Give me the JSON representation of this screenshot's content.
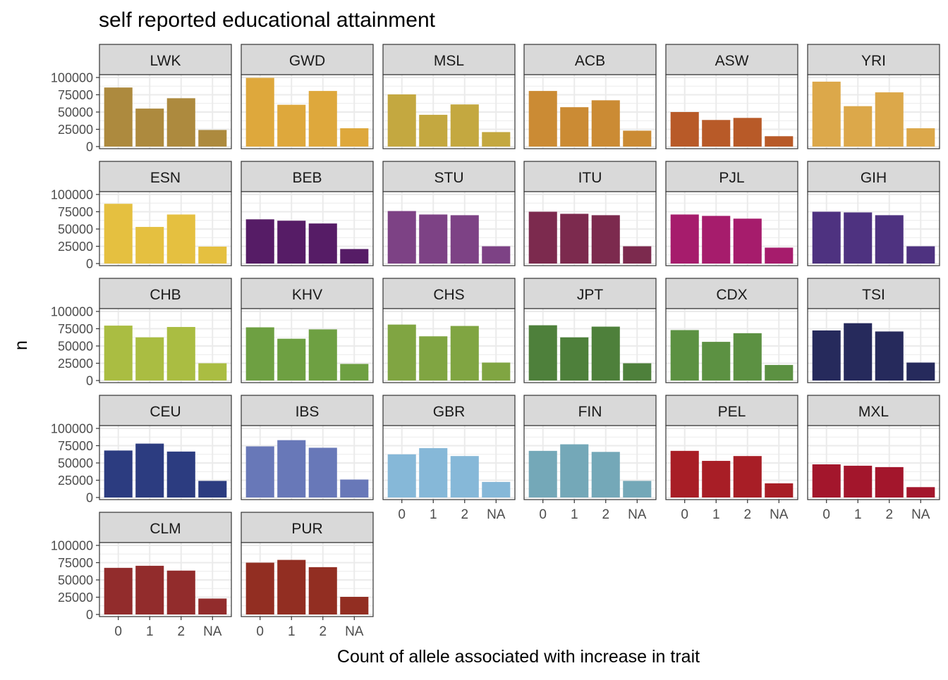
{
  "chart_data": {
    "type": "bar",
    "title": "self reported educational attainment",
    "xlabel": "Count of allele associated with increase in trait",
    "ylabel": "n",
    "categories": [
      "0",
      "1",
      "2",
      "NA"
    ],
    "y_ticks": [
      "0",
      "25000",
      "50000",
      "75000",
      "100000"
    ],
    "y_tick_values": [
      0,
      25000,
      50000,
      75000,
      100000
    ],
    "ylim": [
      0,
      101000
    ],
    "grid": true,
    "facet_layout": {
      "columns": 6,
      "rows": 5
    },
    "panels": [
      {
        "label": "LWK",
        "color": "#AD8A3E",
        "values": [
          85500,
          55000,
          70000,
          24000
        ]
      },
      {
        "label": "GWD",
        "color": "#DEA83C",
        "values": [
          99500,
          60500,
          80500,
          26500
        ]
      },
      {
        "label": "MSL",
        "color": "#C4A840",
        "values": [
          75500,
          46000,
          61000,
          21000
        ]
      },
      {
        "label": "ACB",
        "color": "#CB8B34",
        "values": [
          80500,
          57000,
          67000,
          23000
        ]
      },
      {
        "label": "ASW",
        "color": "#B85A28",
        "values": [
          50000,
          38500,
          41500,
          15000
        ]
      },
      {
        "label": "YRI",
        "color": "#DCA84A",
        "values": [
          94000,
          58500,
          78500,
          26500
        ]
      },
      {
        "label": "ESN",
        "color": "#E5C040",
        "values": [
          86500,
          53000,
          71000,
          24500
        ]
      },
      {
        "label": "BEB",
        "color": "#561C66",
        "values": [
          64000,
          62000,
          58000,
          21000
        ]
      },
      {
        "label": "STU",
        "color": "#7D4285",
        "values": [
          76000,
          71000,
          70000,
          25000
        ]
      },
      {
        "label": "ITU",
        "color": "#7C2A4E",
        "values": [
          75000,
          72000,
          70000,
          25000
        ]
      },
      {
        "label": "PJL",
        "color": "#A61C6C",
        "values": [
          71000,
          69000,
          65000,
          23000
        ]
      },
      {
        "label": "GIH",
        "color": "#4E3280",
        "values": [
          75000,
          74000,
          70000,
          25000
        ]
      },
      {
        "label": "CHB",
        "color": "#AABD42",
        "values": [
          79500,
          62500,
          77500,
          25000
        ]
      },
      {
        "label": "KHV",
        "color": "#6EA042",
        "values": [
          77000,
          60500,
          74000,
          24000
        ]
      },
      {
        "label": "CHS",
        "color": "#80A542",
        "values": [
          81000,
          64000,
          79000,
          26000
        ]
      },
      {
        "label": "JPT",
        "color": "#4E803B",
        "values": [
          80000,
          62500,
          78000,
          25000
        ]
      },
      {
        "label": "CDX",
        "color": "#5C9142",
        "values": [
          73000,
          56000,
          68500,
          22500
        ]
      },
      {
        "label": "TSI",
        "color": "#262A5C",
        "values": [
          72500,
          83000,
          71000,
          26000
        ]
      },
      {
        "label": "CEU",
        "color": "#2C3C80",
        "values": [
          68000,
          78000,
          66500,
          24000
        ]
      },
      {
        "label": "IBS",
        "color": "#6878B8",
        "values": [
          74000,
          83000,
          72000,
          26000
        ]
      },
      {
        "label": "GBR",
        "color": "#86B8D8",
        "values": [
          62500,
          71500,
          60000,
          22500
        ]
      },
      {
        "label": "FIN",
        "color": "#74A8B8",
        "values": [
          67500,
          77000,
          66000,
          24000
        ]
      },
      {
        "label": "PEL",
        "color": "#A81E26",
        "values": [
          67500,
          53000,
          60000,
          20500
        ]
      },
      {
        "label": "MXL",
        "color": "#A3162C",
        "values": [
          48000,
          46000,
          44000,
          15000
        ]
      },
      {
        "label": "CLM",
        "color": "#922C2C",
        "values": [
          67500,
          70500,
          63500,
          23000
        ]
      },
      {
        "label": "PUR",
        "color": "#922E22",
        "values": [
          75000,
          79000,
          68500,
          25500
        ]
      }
    ]
  }
}
